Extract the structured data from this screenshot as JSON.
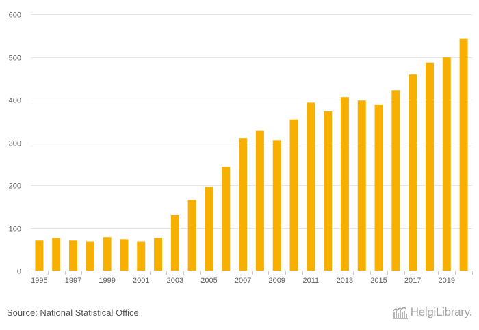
{
  "chart_data": {
    "type": "bar",
    "title": "",
    "xlabel": "",
    "ylabel": "",
    "ylim": [
      0,
      600
    ],
    "yticks": [
      0,
      100,
      200,
      300,
      400,
      500,
      600
    ],
    "categories": [
      "1995",
      "1996",
      "1997",
      "1998",
      "1999",
      "2000",
      "2001",
      "2002",
      "2003",
      "2004",
      "2005",
      "2006",
      "2007",
      "2008",
      "2009",
      "2010",
      "2011",
      "2012",
      "2013",
      "2014",
      "2015",
      "2016",
      "2017",
      "2018",
      "2019",
      "2020"
    ],
    "x_tick_labels": [
      "1995",
      "1997",
      "1999",
      "2001",
      "2003",
      "2005",
      "2007",
      "2009",
      "2011",
      "2013",
      "2015",
      "2017",
      "2019"
    ],
    "values": [
      70,
      76,
      70,
      68,
      78,
      73,
      68,
      76,
      130,
      166,
      196,
      243,
      310,
      327,
      305,
      354,
      393,
      373,
      406,
      398,
      389,
      422,
      459,
      487,
      499,
      543
    ],
    "bar_color": "#f7b000",
    "grid": true
  },
  "footer": {
    "source": "Source: National Statistical Office",
    "brand_name": "HelgiLibrary."
  },
  "colors": {
    "bar": "#f7b000",
    "grid": "#e6e6e6",
    "text": "#606060"
  }
}
